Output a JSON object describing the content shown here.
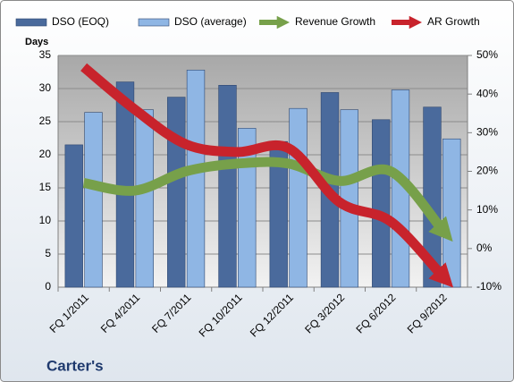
{
  "chart_data": {
    "type": "bar",
    "title": "Carter's",
    "y_label": "Days",
    "categories": [
      "FQ 1/2011",
      "FQ 4/2011",
      "FQ 7/2011",
      "FQ 10/2011",
      "FQ 12/2011",
      "FQ 3/2012",
      "FQ 6/2012",
      "FQ 9/2012"
    ],
    "series": [
      {
        "name": "DSO (EOQ)",
        "type": "bar",
        "color": "#4a6a9c",
        "values": [
          21.5,
          31,
          28.7,
          30.5,
          22,
          29.4,
          25.3,
          27.2
        ]
      },
      {
        "name": "DSO (average)",
        "type": "bar",
        "color": "#8fb6e4",
        "values": [
          26.4,
          26.8,
          32.8,
          24,
          27,
          26.8,
          29.8,
          22.4
        ]
      },
      {
        "name": "Revenue Growth",
        "type": "line",
        "axis": "y2",
        "color": "#77a04a",
        "values": [
          17,
          15,
          20,
          22,
          22,
          17.5,
          20,
          5
        ]
      },
      {
        "name": "AR Growth",
        "type": "line",
        "axis": "y2",
        "color": "#c8232c",
        "values": [
          47,
          36,
          27,
          25,
          26,
          12,
          7,
          -7
        ]
      }
    ],
    "ylim": [
      0,
      35
    ],
    "yticks": [
      0,
      5,
      10,
      15,
      20,
      25,
      30,
      35
    ],
    "y2lim": [
      -10,
      50
    ],
    "y2ticks": [
      {
        "value": -10,
        "label": "-10%"
      },
      {
        "value": 0,
        "label": "0%"
      },
      {
        "value": 10,
        "label": "10%"
      },
      {
        "value": 20,
        "label": "20%"
      },
      {
        "value": 30,
        "label": "30%"
      },
      {
        "value": 40,
        "label": "40%"
      },
      {
        "value": 50,
        "label": "50%"
      }
    ],
    "grid": true,
    "legend": "top"
  }
}
